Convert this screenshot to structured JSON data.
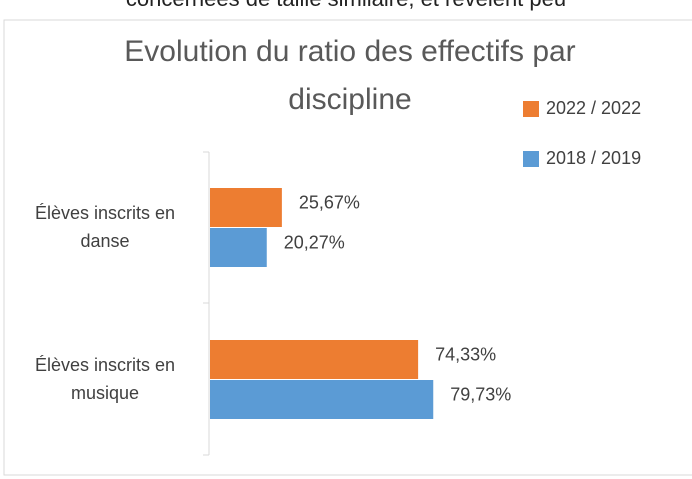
{
  "page_text": "concernées de taille similaire, et révèlent peu",
  "chart_data": {
    "type": "barh",
    "title": "Evolution du ratio des effectifs par discipline",
    "categories": [
      "Élèves inscrits en danse",
      "Élèves inscrits en musique"
    ],
    "series": [
      {
        "name": "2022 / 2022",
        "color": "#ED7D31",
        "values": [
          25.67,
          74.33
        ],
        "value_labels": [
          "25,67%",
          "74,33%"
        ]
      },
      {
        "name": "2018 / 2019",
        "color": "#5B9BD5",
        "values": [
          20.27,
          79.73
        ],
        "value_labels": [
          "20,27%",
          "79,73%"
        ]
      }
    ],
    "xlim": [
      0,
      100
    ],
    "legend": "top-right"
  }
}
